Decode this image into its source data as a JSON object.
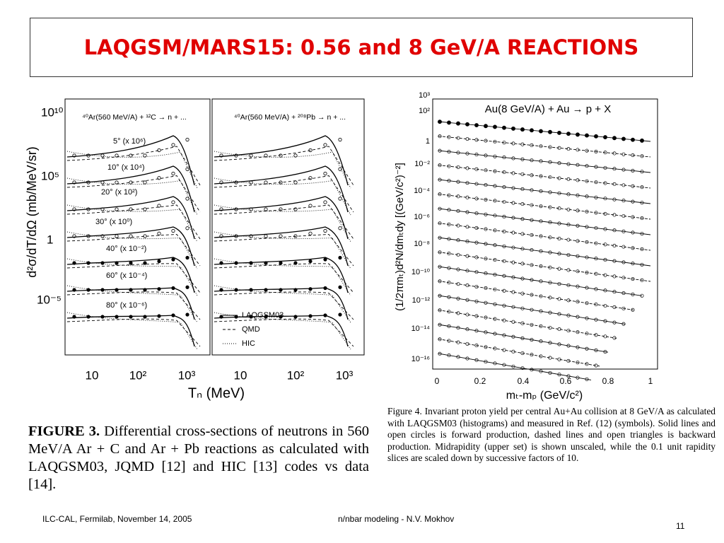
{
  "title": "LAQGSM/MARS15: 0.56 and 8 GeV/A REACTIONS",
  "figure_left": {
    "panels": [
      "⁴⁰Ar(560 MeV/A) + ¹²C → n + ...",
      "⁴⁰Ar(560 MeV/A) + ²⁰⁸Pb → n + ..."
    ],
    "y_label": "d²σ/dT/dΩ (mb/MeV/sr)",
    "y_ticks": [
      "10¹⁰",
      "10⁵",
      "1",
      "10⁻⁵"
    ],
    "x_ticks": [
      "10",
      "10²",
      "10³",
      "10",
      "10²",
      "10³"
    ],
    "x_label": "Tₙ (MeV)",
    "angles": [
      "5° (x 10⁶)",
      "10° (x 10⁴)",
      "20° (x 10²)",
      "30° (x 10⁰)",
      "40° (x 10⁻²)",
      "60° (x 10⁻⁴)",
      "80° (x 10⁻⁶)"
    ],
    "legend": [
      "LAQGSM03",
      "QMD",
      "HIC"
    ],
    "caption_label": "FIGURE 3.",
    "caption": "Differential cross-sections of neutrons in 560 MeV/A Ar + C and Ar + Pb reactions as calculated with LAQGSM03, JQMD [12] and HIC [13] codes vs data [14]."
  },
  "figure_right": {
    "title": "Au(8 GeV/A) + Au → p + X",
    "y_label": "(1/2πmₜ)d²N/dmₜdy [(GeV/c²)⁻²]",
    "y_ticks": [
      "10³",
      "10²",
      "1",
      "10⁻²",
      "10⁻⁴",
      "10⁻⁶",
      "10⁻⁸",
      "10⁻¹⁰",
      "10⁻¹²",
      "10⁻¹⁴",
      "10⁻¹⁶"
    ],
    "x_ticks": [
      "0",
      "0.2",
      "0.4",
      "0.6",
      "0.8",
      "1"
    ],
    "x_label": "mₜ-mₚ (GeV/c²)",
    "caption": "Figure 4. Invariant proton yield per central Au+Au collision at 8 GeV/A as calculated with LAQGSM03 (histograms) and measured in Ref. (12) (symbols). Solid lines and open circles is forward production, dashed lines and open triangles is backward production. Midrapidity (upper set) is shown unscaled, while the 0.1 unit rapidity slices are scaled down by successive factors of 10."
  },
  "footer": {
    "left": "ILC-CAL, Fermilab, November 14, 2005",
    "center": "n/nbar modeling -  N.V. Mokhov",
    "page": "11"
  }
}
